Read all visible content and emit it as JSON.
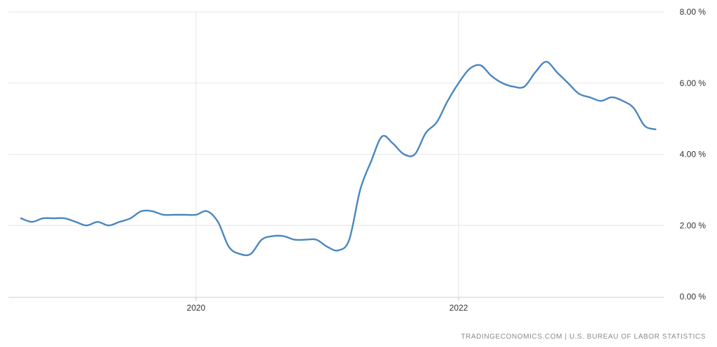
{
  "chart_data": {
    "type": "line",
    "title": "",
    "xlabel": "",
    "ylabel": "",
    "ylim": [
      0,
      8
    ],
    "yticks": [
      {
        "value": 8,
        "label": "8.00 %"
      },
      {
        "value": 6,
        "label": "6.00 %"
      },
      {
        "value": 4,
        "label": "4.00 %"
      },
      {
        "value": 2,
        "label": "2.00 %"
      },
      {
        "value": 0,
        "label": "0.00 %"
      }
    ],
    "xticks": [
      {
        "value": "2020-01",
        "label": "2020"
      },
      {
        "value": "2022-01",
        "label": "2022"
      }
    ],
    "grid": true,
    "legend": "none",
    "line_color": "#4a86c0",
    "source_text": "TRADINGECONOMICS.COM  |  U.S. BUREAU OF LABOR STATISTICS",
    "series": [
      {
        "x": [
          "2018-09",
          "2018-10",
          "2018-11",
          "2018-12",
          "2019-01",
          "2019-02",
          "2019-03",
          "2019-04",
          "2019-05",
          "2019-06",
          "2019-07",
          "2019-08",
          "2019-09",
          "2019-10",
          "2019-11",
          "2019-12",
          "2020-01",
          "2020-02",
          "2020-03",
          "2020-04",
          "2020-05",
          "2020-06",
          "2020-07",
          "2020-08",
          "2020-09",
          "2020-10",
          "2020-11",
          "2020-12",
          "2021-01",
          "2021-02",
          "2021-03",
          "2021-04",
          "2021-05",
          "2021-06",
          "2021-07",
          "2021-08",
          "2021-09",
          "2021-10",
          "2021-11",
          "2021-12",
          "2022-01",
          "2022-02",
          "2022-03",
          "2022-04",
          "2022-05",
          "2022-06",
          "2022-07",
          "2022-08",
          "2022-09",
          "2022-10",
          "2022-11",
          "2022-12",
          "2023-01",
          "2023-02",
          "2023-03",
          "2023-04",
          "2023-05",
          "2023-06",
          "2023-07"
        ],
        "values": [
          2.2,
          2.1,
          2.2,
          2.2,
          2.2,
          2.1,
          2.0,
          2.1,
          2.0,
          2.1,
          2.2,
          2.4,
          2.4,
          2.3,
          2.3,
          2.3,
          2.3,
          2.4,
          2.1,
          1.4,
          1.2,
          1.2,
          1.6,
          1.7,
          1.7,
          1.6,
          1.6,
          1.6,
          1.4,
          1.3,
          1.6,
          3.0,
          3.8,
          4.5,
          4.3,
          4.0,
          4.0,
          4.6,
          4.9,
          5.5,
          6.0,
          6.4,
          6.5,
          6.2,
          6.0,
          5.9,
          5.9,
          6.3,
          6.6,
          6.3,
          6.0,
          5.7,
          5.6,
          5.5,
          5.6,
          5.5,
          5.3,
          4.8,
          4.7
        ]
      }
    ]
  }
}
